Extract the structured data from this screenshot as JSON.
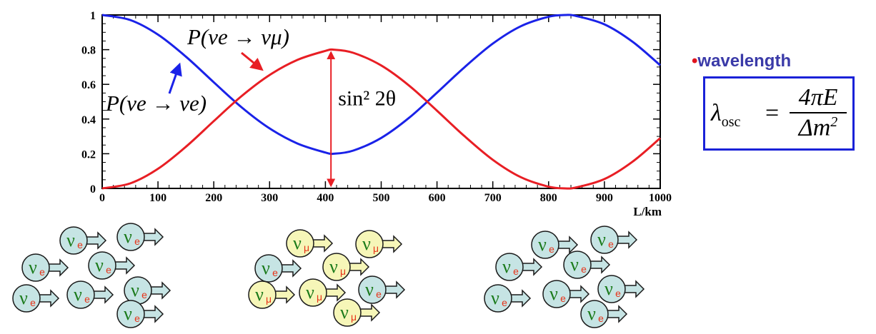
{
  "chart_data": {
    "type": "line",
    "title": "",
    "xlabel": "L/km",
    "ylabel": "",
    "xlim": [
      0,
      1000
    ],
    "ylim": [
      0,
      1
    ],
    "x_ticks": [
      0,
      100,
      200,
      300,
      400,
      500,
      600,
      700,
      800,
      900,
      1000
    ],
    "y_ticks": [
      0,
      0.2,
      0.4,
      0.6,
      0.8,
      1
    ],
    "y_tick_labels": [
      "0",
      "0.2",
      "0.4",
      "0.6",
      "0.8",
      "1"
    ],
    "grid": false,
    "series": [
      {
        "name": "P(νe → νe)",
        "color": "#1a22e8",
        "x": [
          0,
          50,
          100,
          150,
          200,
          250,
          300,
          350,
          400,
          415,
          450,
          500,
          550,
          600,
          650,
          700,
          750,
          800,
          830,
          850,
          900,
          950,
          1000
        ],
        "y": [
          1.0,
          0.971,
          0.887,
          0.76,
          0.612,
          0.467,
          0.346,
          0.259,
          0.207,
          0.2,
          0.218,
          0.291,
          0.407,
          0.552,
          0.701,
          0.835,
          0.935,
          0.99,
          1.0,
          0.994,
          0.946,
          0.847,
          0.71
        ]
      },
      {
        "name": "P(νe → νμ)",
        "color": "#e81e24",
        "x": [
          0,
          50,
          100,
          150,
          200,
          250,
          300,
          350,
          400,
          415,
          450,
          500,
          550,
          600,
          650,
          700,
          750,
          800,
          830,
          850,
          900,
          950,
          1000
        ],
        "y": [
          0.0,
          0.029,
          0.113,
          0.24,
          0.388,
          0.533,
          0.654,
          0.741,
          0.793,
          0.8,
          0.782,
          0.709,
          0.593,
          0.448,
          0.299,
          0.165,
          0.065,
          0.01,
          0.0,
          0.006,
          0.054,
          0.153,
          0.29
        ]
      }
    ],
    "annotations": {
      "amplitude_label": "sin² 2θ",
      "amplitude_x": 410,
      "amplitude_y_low": 0.0,
      "amplitude_y_high": 0.8
    }
  },
  "side_panel": {
    "bullet": "•",
    "title": "wavelength",
    "formula_lhs": "λ",
    "formula_lhs_sub": "osc",
    "formula_eq": "=",
    "formula_num": "4πE",
    "formula_den": "Δm",
    "formula_den_sup": "2"
  },
  "particles": {
    "nu_symbol": "ν",
    "e_sub": "e",
    "mu_sub": "μ",
    "colors": {
      "e_fill": "#c6e4e4",
      "mu_fill": "#f6f6b8",
      "outline": "#1a1a1a",
      "nu_color": "#1a7a1a",
      "sub_color": "#e8341a"
    },
    "groups": [
      {
        "name": "left",
        "items": [
          "e",
          "e",
          "e",
          "e",
          "e",
          "e",
          "e",
          "e"
        ]
      },
      {
        "name": "middle",
        "items": [
          "mu",
          "mu",
          "mu",
          "e",
          "mu",
          "mu",
          "mu",
          "e",
          "mu"
        ]
      },
      {
        "name": "right",
        "items": [
          "e",
          "e",
          "e",
          "e",
          "e",
          "e",
          "e",
          "e"
        ]
      }
    ]
  }
}
